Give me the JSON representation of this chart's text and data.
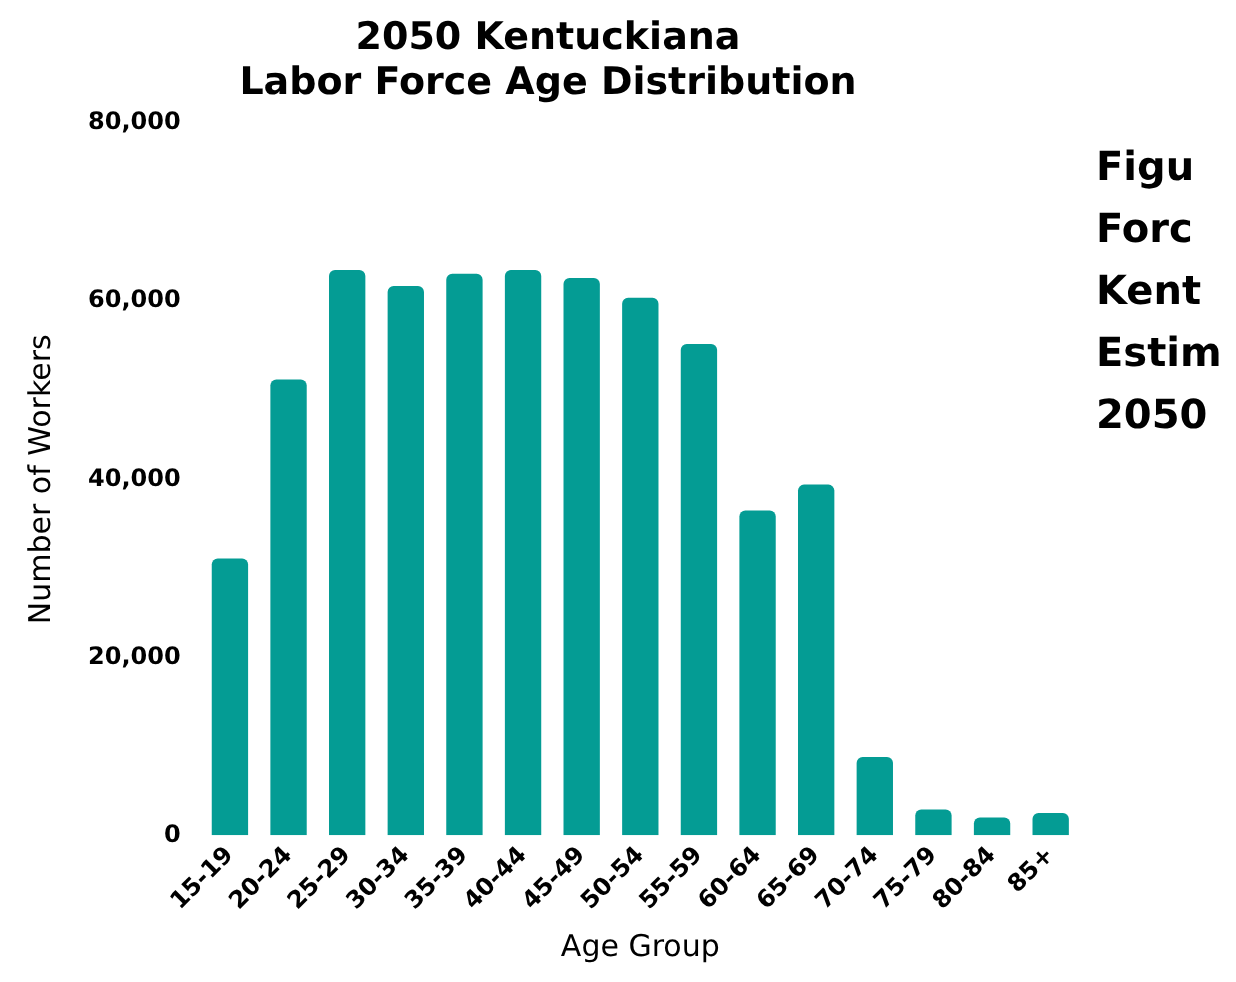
{
  "chart_data": {
    "type": "bar",
    "title": "2050 Kentuckiana\nLabor Force Age Distribution",
    "xlabel": "Age Group",
    "ylabel": "Number of Workers",
    "categories": [
      "15-19",
      "20-24",
      "25-29",
      "30-34",
      "35-39",
      "40-44",
      "45-49",
      "50-54",
      "55-59",
      "60-64",
      "65-69",
      "70-74",
      "75-79",
      "80-84",
      "85+"
    ],
    "values": [
      31100,
      51200,
      63500,
      61700,
      63100,
      63500,
      62600,
      60400,
      55200,
      36500,
      39400,
      8800,
      2900,
      2000,
      2500
    ],
    "color": "#049c94",
    "ylim": [
      0,
      80000
    ],
    "yticks": [
      0,
      {
        "value": 20000,
        "label": "20,000"
      },
      {
        "value": 40000,
        "label": "40,000"
      },
      {
        "value": 60000,
        "label": "60,000"
      },
      {
        "value": 80000,
        "label": "80,000"
      }
    ],
    "grid": false,
    "legend": false,
    "annotations": [
      "Figu\nForc\nKent\nEstim\n2050"
    ]
  }
}
